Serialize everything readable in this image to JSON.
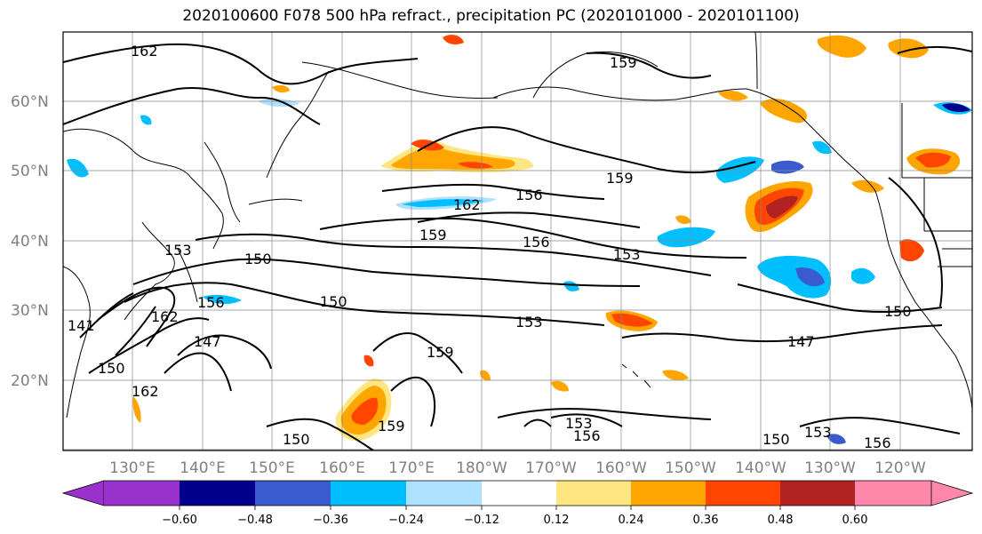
{
  "title": "2020100600 F078 500 hPa refract., precipitation PC (2020101000 - 2020101100)",
  "map": {
    "lat_labels": [
      "60°N",
      "50°N",
      "40°N",
      "30°N",
      "20°N"
    ],
    "lon_labels": [
      "130°E",
      "140°E",
      "150°E",
      "160°E",
      "170°E",
      "180°W",
      "170°W",
      "160°W",
      "150°W",
      "140°W",
      "130°W",
      "120°W"
    ],
    "contour_labels": [
      "162",
      "159",
      "159",
      "156",
      "162",
      "159",
      "156",
      "153",
      "153",
      "150",
      "150",
      "162",
      "156",
      "147",
      "150",
      "162",
      "153",
      "159",
      "150",
      "159",
      "147",
      "153",
      "156",
      "150",
      "153",
      "156",
      "150",
      "141"
    ]
  },
  "colorbar": {
    "ticks": [
      "−0.60",
      "−0.48",
      "−0.36",
      "−0.24",
      "−0.12",
      "0.12",
      "0.24",
      "0.36",
      "0.48",
      "0.60"
    ],
    "colors": [
      "#9932CC",
      "#00008B",
      "#3A5BCD",
      "#00BFFF",
      "#AEE0FF",
      "#FFFFFF",
      "#FFE680",
      "#FFA500",
      "#FF4500",
      "#B22222",
      "#FF88AA"
    ]
  }
}
